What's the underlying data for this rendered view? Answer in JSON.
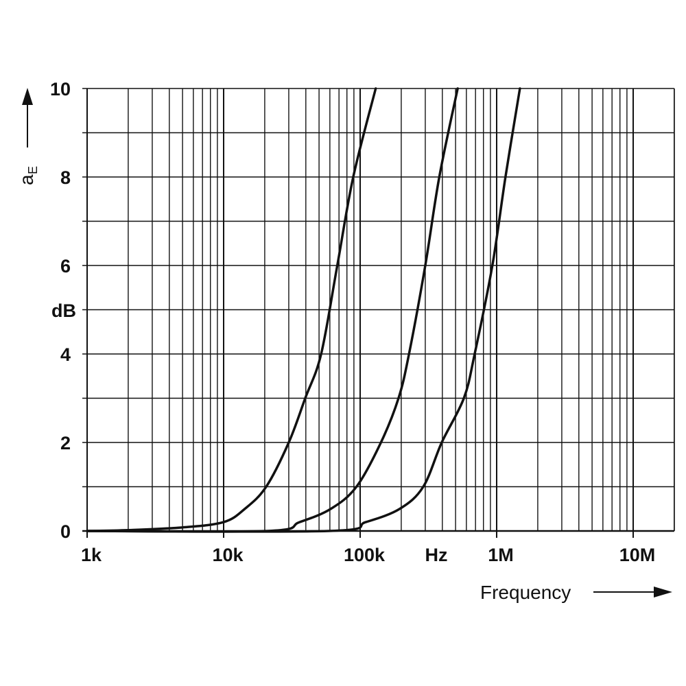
{
  "chart_data": {
    "type": "line",
    "title": "",
    "xlabel": "Frequency",
    "xunit": "Hz",
    "ylabel": "a_E",
    "ylabel_main": "a",
    "ylabel_sub": "E",
    "yunit": "dB",
    "xscale": "log",
    "xlim": [
      1000,
      20000000
    ],
    "ylim": [
      0,
      10
    ],
    "grid": true,
    "x_ticks": [
      {
        "value": 1000,
        "label": "1k"
      },
      {
        "value": 10000,
        "label": "10k"
      },
      {
        "value": 100000,
        "label": "100k"
      },
      {
        "value": 1000000,
        "label": "1M"
      },
      {
        "value": 10000000,
        "label": "10M"
      }
    ],
    "y_ticks": [
      {
        "value": 0,
        "label": "0"
      },
      {
        "value": 2,
        "label": "2"
      },
      {
        "value": 4,
        "label": "4"
      },
      {
        "value": 6,
        "label": "6"
      },
      {
        "value": 8,
        "label": "8"
      },
      {
        "value": 10,
        "label": "10"
      }
    ],
    "series": [
      {
        "color": "#111111",
        "points": [
          [
            1000,
            0
          ],
          [
            2000,
            0.02
          ],
          [
            5000,
            0.08
          ],
          [
            10000,
            0.2
          ],
          [
            14300,
            0.5
          ],
          [
            20500,
            1
          ],
          [
            30000,
            2
          ],
          [
            39600,
            3
          ],
          [
            51800,
            4
          ],
          [
            68000,
            6
          ],
          [
            89000,
            8
          ],
          [
            130000,
            10
          ]
        ]
      },
      {
        "color": "#111111",
        "points": [
          [
            1000,
            0
          ],
          [
            21000,
            0
          ],
          [
            36000,
            0.2
          ],
          [
            61000,
            0.5
          ],
          [
            94000,
            1
          ],
          [
            142000,
            2
          ],
          [
            191000,
            3
          ],
          [
            228000,
            4
          ],
          [
            300000,
            6
          ],
          [
            380000,
            8
          ],
          [
            518000,
            10
          ]
        ]
      },
      {
        "color": "#111111",
        "points": [
          [
            1000,
            0
          ],
          [
            59000,
            0
          ],
          [
            110000,
            0.2
          ],
          [
            195000,
            0.5
          ],
          [
            290000,
            1
          ],
          [
            396000,
            2
          ],
          [
            575000,
            3
          ],
          [
            690000,
            4
          ],
          [
            930000,
            6
          ],
          [
            1160000,
            8
          ],
          [
            1480000,
            10
          ]
        ]
      }
    ]
  }
}
